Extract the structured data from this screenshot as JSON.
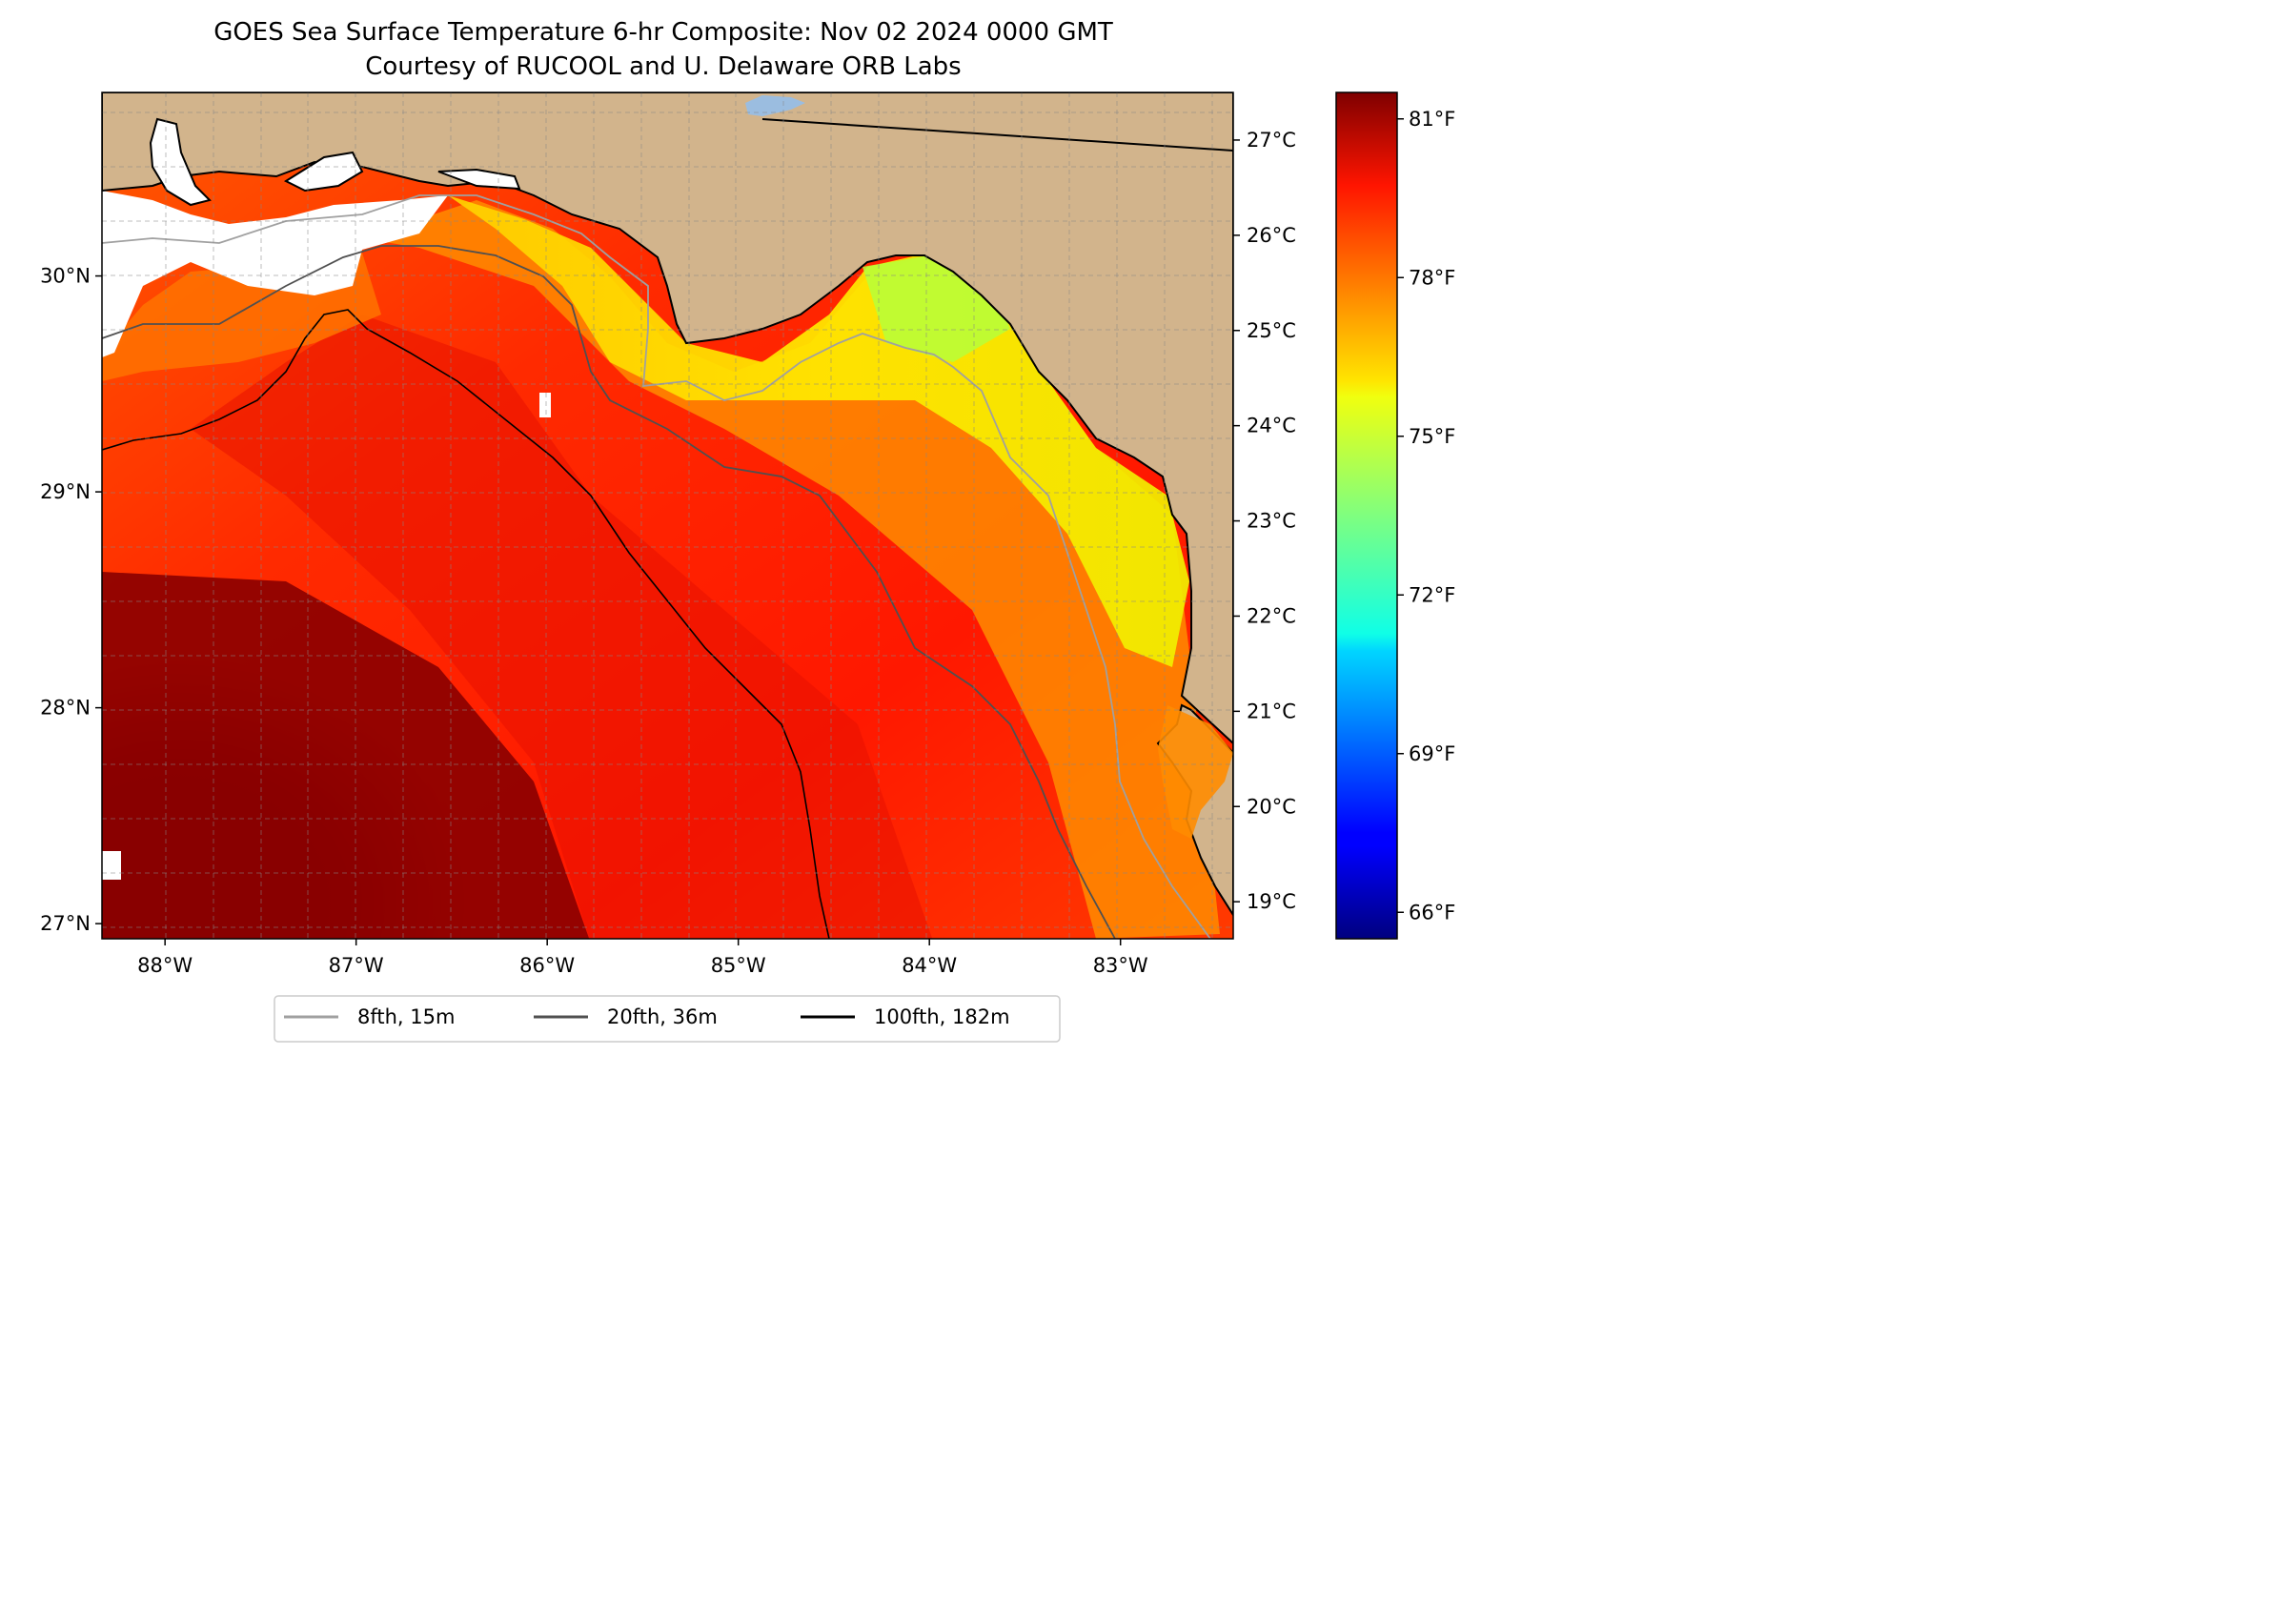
{
  "title": {
    "line1": "GOES Sea Surface Temperature 6-hr Composite: Nov 02 2024 0000 GMT",
    "line2": "Courtesy of RUCOOL and U. Delaware ORB Labs"
  },
  "map": {
    "extent": {
      "lon_min": -88.33,
      "lon_max": -82.41,
      "lat_min": 26.93,
      "lat_max": 30.85
    },
    "lat_ticks": [
      {
        "value": 30,
        "label": "30°N"
      },
      {
        "value": 29,
        "label": "29°N"
      },
      {
        "value": 28,
        "label": "28°N"
      },
      {
        "value": 27,
        "label": "27°N"
      }
    ],
    "lon_ticks": [
      {
        "value": -88,
        "label": "88°W"
      },
      {
        "value": -87,
        "label": "87°W"
      },
      {
        "value": -86,
        "label": "86°W"
      },
      {
        "value": -85,
        "label": "85°W"
      },
      {
        "value": -84,
        "label": "84°W"
      },
      {
        "value": -83,
        "label": "83°W"
      }
    ],
    "grid": true,
    "land_color": "#d2b48c",
    "no_data_color": "#ffffff"
  },
  "legend": {
    "placement": "bottom-center",
    "items": [
      {
        "label": "8fth, 15m",
        "color": "#a0a0a0"
      },
      {
        "label": "20fth, 36m",
        "color": "#505050"
      },
      {
        "label": "100fth, 182m",
        "color": "#000000"
      }
    ]
  },
  "colorbar": {
    "colormap": "jet",
    "range_f": [
      65.5,
      81.5
    ],
    "celsius_ticks": [
      {
        "value": 27,
        "label": "27°C"
      },
      {
        "value": 26,
        "label": "26°C"
      },
      {
        "value": 25,
        "label": "25°C"
      },
      {
        "value": 24,
        "label": "24°C"
      },
      {
        "value": 23,
        "label": "23°C"
      },
      {
        "value": 22,
        "label": "22°C"
      },
      {
        "value": 21,
        "label": "21°C"
      },
      {
        "value": 20,
        "label": "20°C"
      },
      {
        "value": 19,
        "label": "19°C"
      }
    ],
    "fahrenheit_ticks": [
      {
        "value": 81,
        "label": "81°F"
      },
      {
        "value": 78,
        "label": "78°F"
      },
      {
        "value": 75,
        "label": "75°F"
      },
      {
        "value": 72,
        "label": "72°F"
      },
      {
        "value": 69,
        "label": "69°F"
      },
      {
        "value": 66,
        "label": "66°F"
      }
    ]
  }
}
